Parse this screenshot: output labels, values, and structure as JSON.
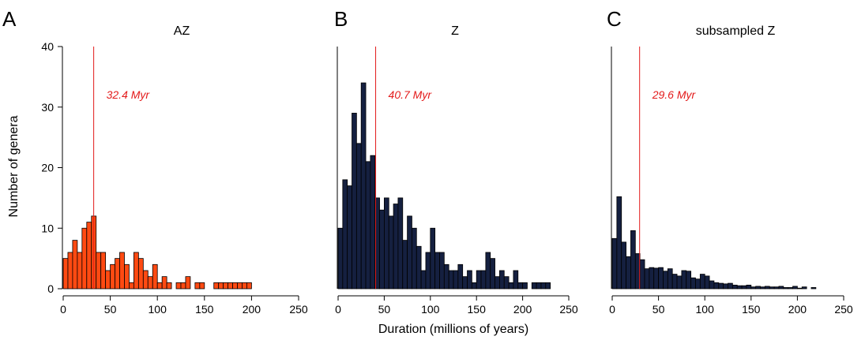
{
  "figure": {
    "xlabel": "Duration (millions of years)",
    "ylabel": "Number of genera"
  },
  "colors": {
    "AZ": "#ff4a12",
    "Z": "#152040",
    "subsampled_Z": "#152040",
    "median_line": "#e31b1b",
    "axis": "#000000"
  },
  "chart_data": [
    {
      "type": "bar",
      "panel_letter": "A",
      "title": "AZ",
      "xlim": [
        0,
        250
      ],
      "ylim": [
        0,
        40
      ],
      "xticks": [
        0,
        50,
        100,
        150,
        200,
        250
      ],
      "yticks": [
        0,
        10,
        20,
        30,
        40
      ],
      "bin_width": 5,
      "show_y_axis_ticks": true,
      "values": [
        5,
        6,
        8,
        6,
        10,
        11,
        12,
        6,
        6,
        3,
        4,
        5,
        6,
        4,
        1,
        6,
        5,
        3,
        2,
        4,
        1,
        2,
        1,
        0,
        1,
        1,
        2,
        0,
        1,
        1,
        0,
        0,
        1,
        1,
        1,
        1,
        1,
        1,
        1,
        1,
        0,
        0,
        0,
        0,
        0,
        0,
        0,
        0,
        0,
        0
      ],
      "median": 32.4,
      "median_label": "32.4 Myr"
    },
    {
      "type": "bar",
      "panel_letter": "B",
      "title": "Z",
      "xlim": [
        0,
        250
      ],
      "ylim": [
        0,
        40
      ],
      "xticks": [
        0,
        50,
        100,
        150,
        200,
        250
      ],
      "bin_width": 5,
      "show_y_axis_ticks": false,
      "values": [
        10,
        18,
        17,
        29,
        24,
        34,
        21,
        22,
        15,
        13,
        15,
        12,
        14,
        15,
        8,
        12,
        10,
        7,
        3,
        6,
        10,
        6,
        6,
        4,
        3,
        3,
        4,
        2,
        3,
        1,
        3,
        3,
        6,
        5,
        2,
        3,
        2,
        1,
        3,
        1,
        1,
        0,
        1,
        1,
        1,
        1,
        0,
        0,
        0,
        0
      ],
      "median": 40.7,
      "median_label": "40.7 Myr"
    },
    {
      "type": "bar",
      "panel_letter": "C",
      "title": "subsampled Z",
      "xlim": [
        0,
        250
      ],
      "ylim": [
        0,
        40
      ],
      "xticks": [
        0,
        50,
        100,
        150,
        200,
        250
      ],
      "bin_width": 5,
      "show_y_axis_ticks": false,
      "values": [
        8.3,
        15.2,
        7.7,
        5.3,
        9.6,
        5.8,
        4.8,
        3.3,
        3.5,
        3.4,
        3.5,
        2.9,
        3.3,
        2.4,
        2.1,
        3.0,
        2.9,
        1.8,
        1.6,
        2.4,
        2.1,
        1.3,
        1.0,
        0.9,
        0.8,
        0.9,
        0.6,
        0.5,
        0.5,
        0.6,
        0.3,
        0.4,
        0.3,
        0.4,
        0.3,
        0.3,
        0.4,
        0.2,
        0.2,
        0.4,
        0.1,
        0.3,
        0.0,
        0.2,
        0.0,
        0.0,
        0.0,
        0.0,
        0.0,
        0.0
      ],
      "median": 29.6,
      "median_label": "29.6  Myr"
    }
  ]
}
